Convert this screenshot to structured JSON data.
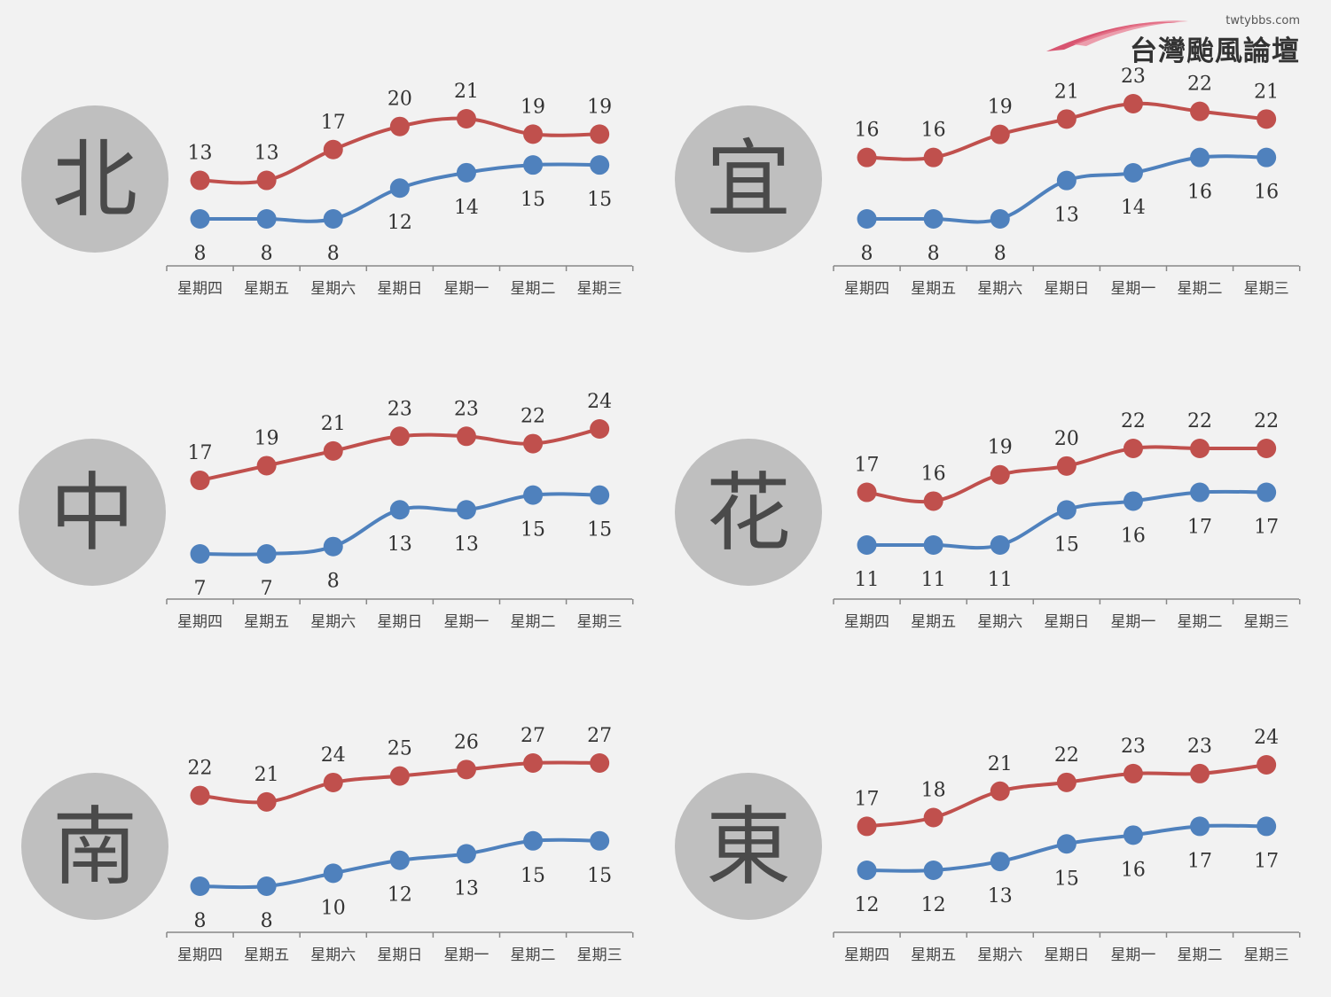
{
  "logo": {
    "url": "twtybbs.com",
    "name": "台灣颱風論壇"
  },
  "colors": {
    "high": "#c0504d",
    "low": "#4f81bd",
    "circle": "#bfbfbf",
    "background": "#f2f2f2"
  },
  "chart_data": [
    {
      "type": "line",
      "region": "北",
      "categories": [
        "星期四",
        "星期五",
        "星期六",
        "星期日",
        "星期一",
        "星期二",
        "星期三"
      ],
      "series": [
        {
          "values": [
            13,
            13,
            17,
            20,
            21,
            19,
            19
          ],
          "color": "#c0504d"
        },
        {
          "values": [
            8,
            8,
            8,
            12,
            14,
            15,
            15
          ],
          "color": "#4f81bd"
        }
      ]
    },
    {
      "type": "line",
      "region": "宜",
      "categories": [
        "星期四",
        "星期五",
        "星期六",
        "星期日",
        "星期一",
        "星期二",
        "星期三"
      ],
      "series": [
        {
          "values": [
            16,
            16,
            19,
            21,
            23,
            22,
            21
          ],
          "color": "#c0504d"
        },
        {
          "values": [
            8,
            8,
            8,
            13,
            14,
            16,
            16
          ],
          "color": "#4f81bd"
        }
      ]
    },
    {
      "type": "line",
      "region": "中",
      "categories": [
        "星期四",
        "星期五",
        "星期六",
        "星期日",
        "星期一",
        "星期二",
        "星期三"
      ],
      "series": [
        {
          "values": [
            17,
            19,
            21,
            23,
            23,
            22,
            24
          ],
          "color": "#c0504d"
        },
        {
          "values": [
            7,
            7,
            8,
            13,
            13,
            15,
            15
          ],
          "color": "#4f81bd"
        }
      ]
    },
    {
      "type": "line",
      "region": "花",
      "categories": [
        "星期四",
        "星期五",
        "星期六",
        "星期日",
        "星期一",
        "星期二",
        "星期三"
      ],
      "series": [
        {
          "values": [
            17,
            16,
            19,
            20,
            22,
            22,
            22
          ],
          "color": "#c0504d"
        },
        {
          "values": [
            11,
            11,
            11,
            15,
            16,
            17,
            17
          ],
          "color": "#4f81bd"
        }
      ]
    },
    {
      "type": "line",
      "region": "南",
      "categories": [
        "星期四",
        "星期五",
        "星期六",
        "星期日",
        "星期一",
        "星期二",
        "星期三"
      ],
      "series": [
        {
          "values": [
            22,
            21,
            24,
            25,
            26,
            27,
            27
          ],
          "color": "#c0504d"
        },
        {
          "values": [
            8,
            8,
            10,
            12,
            13,
            15,
            15
          ],
          "color": "#4f81bd"
        }
      ]
    },
    {
      "type": "line",
      "region": "東",
      "categories": [
        "星期四",
        "星期五",
        "星期六",
        "星期日",
        "星期一",
        "星期二",
        "星期三"
      ],
      "series": [
        {
          "values": [
            17,
            18,
            21,
            22,
            23,
            23,
            24
          ],
          "color": "#c0504d"
        },
        {
          "values": [
            12,
            12,
            13,
            15,
            16,
            17,
            17
          ],
          "color": "#4f81bd"
        }
      ]
    }
  ]
}
